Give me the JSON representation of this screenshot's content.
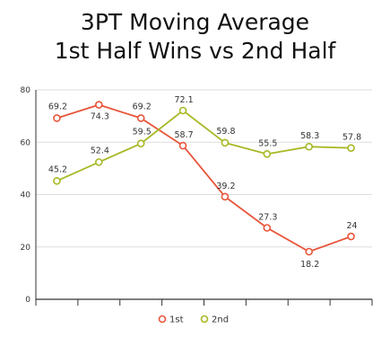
{
  "chart_data": {
    "type": "line",
    "title": [
      "3PT Moving Average",
      "1st Half Wins vs 2nd Half"
    ],
    "xlabel": "",
    "ylabel": "",
    "ylim": [
      0,
      80
    ],
    "yticks": [
      "0",
      "20",
      "40",
      "60",
      "80"
    ],
    "grid": true,
    "legend": "bottom",
    "series": [
      {
        "name": "1st",
        "color": "#e8553a",
        "values": [
          69.2,
          74.3,
          69.2,
          58.7,
          39.2,
          27.3,
          18.2,
          24
        ],
        "labels": [
          "69.2",
          "74.3",
          "69.2",
          "58.7",
          "39.2",
          "27.3",
          "18.2",
          "24"
        ]
      },
      {
        "name": "2nd",
        "color": "#a8b825",
        "values": [
          45.2,
          52.4,
          59.5,
          72.1,
          59.8,
          55.5,
          58.3,
          57.8
        ],
        "labels": [
          "45.2",
          "52.4",
          "59.5",
          "72.1",
          "59.8",
          "55.5",
          "58.3",
          "57.8"
        ]
      }
    ]
  }
}
